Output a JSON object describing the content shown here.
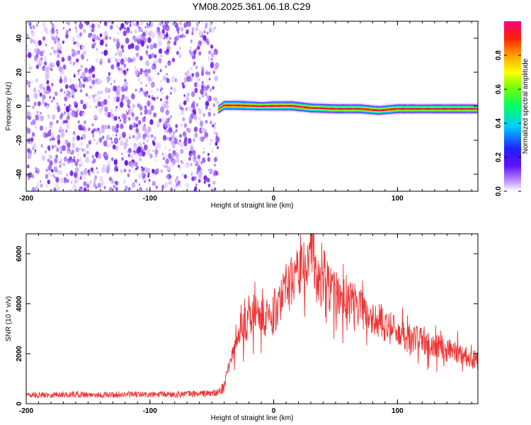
{
  "title": "YM08.2025.361.06.18.C29",
  "chart_data": [
    {
      "type": "heatmap",
      "xlabel": "Height of straight line (km)",
      "ylabel": "Frequency (Hz)",
      "xlim": [
        -200,
        165
      ],
      "ylim": [
        -50,
        50
      ],
      "xticks": [
        -200,
        -100,
        0,
        100
      ],
      "yticks": [
        -40,
        -20,
        0,
        20,
        40
      ],
      "noise_region": {
        "x_range": [
          -200,
          -45
        ],
        "color": "#7b2cf0"
      },
      "signal_band": [
        {
          "x": -45,
          "y": -2.0,
          "amp": 0.55
        },
        {
          "x": -40,
          "y": 0.5,
          "amp": 0.9
        },
        {
          "x": -30,
          "y": 0.5,
          "amp": 0.95
        },
        {
          "x": -20,
          "y": 0.3,
          "amp": 0.9
        },
        {
          "x": -10,
          "y": 0.0,
          "amp": 0.7
        },
        {
          "x": 0,
          "y": 0.2,
          "amp": 0.95
        },
        {
          "x": 15,
          "y": 0.2,
          "amp": 1.0
        },
        {
          "x": 30,
          "y": -1.0,
          "amp": 0.9
        },
        {
          "x": 50,
          "y": -1.5,
          "amp": 0.95
        },
        {
          "x": 70,
          "y": -1.5,
          "amp": 0.9
        },
        {
          "x": 85,
          "y": -2.5,
          "amp": 0.85
        },
        {
          "x": 100,
          "y": -1.5,
          "amp": 0.9
        },
        {
          "x": 120,
          "y": -1.5,
          "amp": 0.85
        },
        {
          "x": 140,
          "y": -1.5,
          "amp": 0.9
        },
        {
          "x": 165,
          "y": -1.5,
          "amp": 0.9
        }
      ],
      "colorbar": {
        "label": "Normalized spectral amplitude",
        "ticks": [
          0.0,
          0.2,
          0.4,
          0.6,
          0.8
        ],
        "range": [
          0,
          1
        ],
        "colors": [
          "#ffffff",
          "#b070ff",
          "#3000ff",
          "#00d0ff",
          "#00ff40",
          "#ffff00",
          "#ff9000",
          "#ff2000",
          "#ff0080"
        ]
      }
    },
    {
      "type": "line",
      "xlabel": "Height of straight line (km)",
      "ylabel": "SNR (10 * v/v)",
      "xlim": [
        -200,
        165
      ],
      "ylim": [
        0,
        6800
      ],
      "xticks": [
        -200,
        -100,
        0,
        100
      ],
      "yticks": [
        0,
        2000,
        4000,
        6000
      ],
      "series": [
        {
          "color": "#ee3333",
          "x": [
            -200,
            -180,
            -160,
            -140,
            -120,
            -100,
            -80,
            -60,
            -45,
            -40,
            -35,
            -30,
            -25,
            -20,
            -15,
            -10,
            -5,
            0,
            5,
            10,
            15,
            20,
            25,
            30,
            35,
            40,
            45,
            50,
            55,
            60,
            65,
            70,
            75,
            80,
            85,
            90,
            95,
            100,
            105,
            110,
            115,
            120,
            125,
            130,
            135,
            140,
            145,
            150,
            155,
            160,
            165
          ],
          "y": [
            350,
            360,
            380,
            350,
            370,
            360,
            380,
            400,
            430,
            700,
            1800,
            2600,
            3000,
            3300,
            3700,
            3500,
            3400,
            3600,
            4000,
            4600,
            4900,
            5300,
            6100,
            6200,
            5000,
            4700,
            4700,
            4500,
            4200,
            4000,
            4100,
            3800,
            3500,
            3300,
            3400,
            3000,
            3000,
            3000,
            2800,
            2500,
            2600,
            2500,
            2400,
            2300,
            2300,
            2100,
            2200,
            2000,
            1900,
            1800,
            1700
          ]
        }
      ]
    }
  ]
}
